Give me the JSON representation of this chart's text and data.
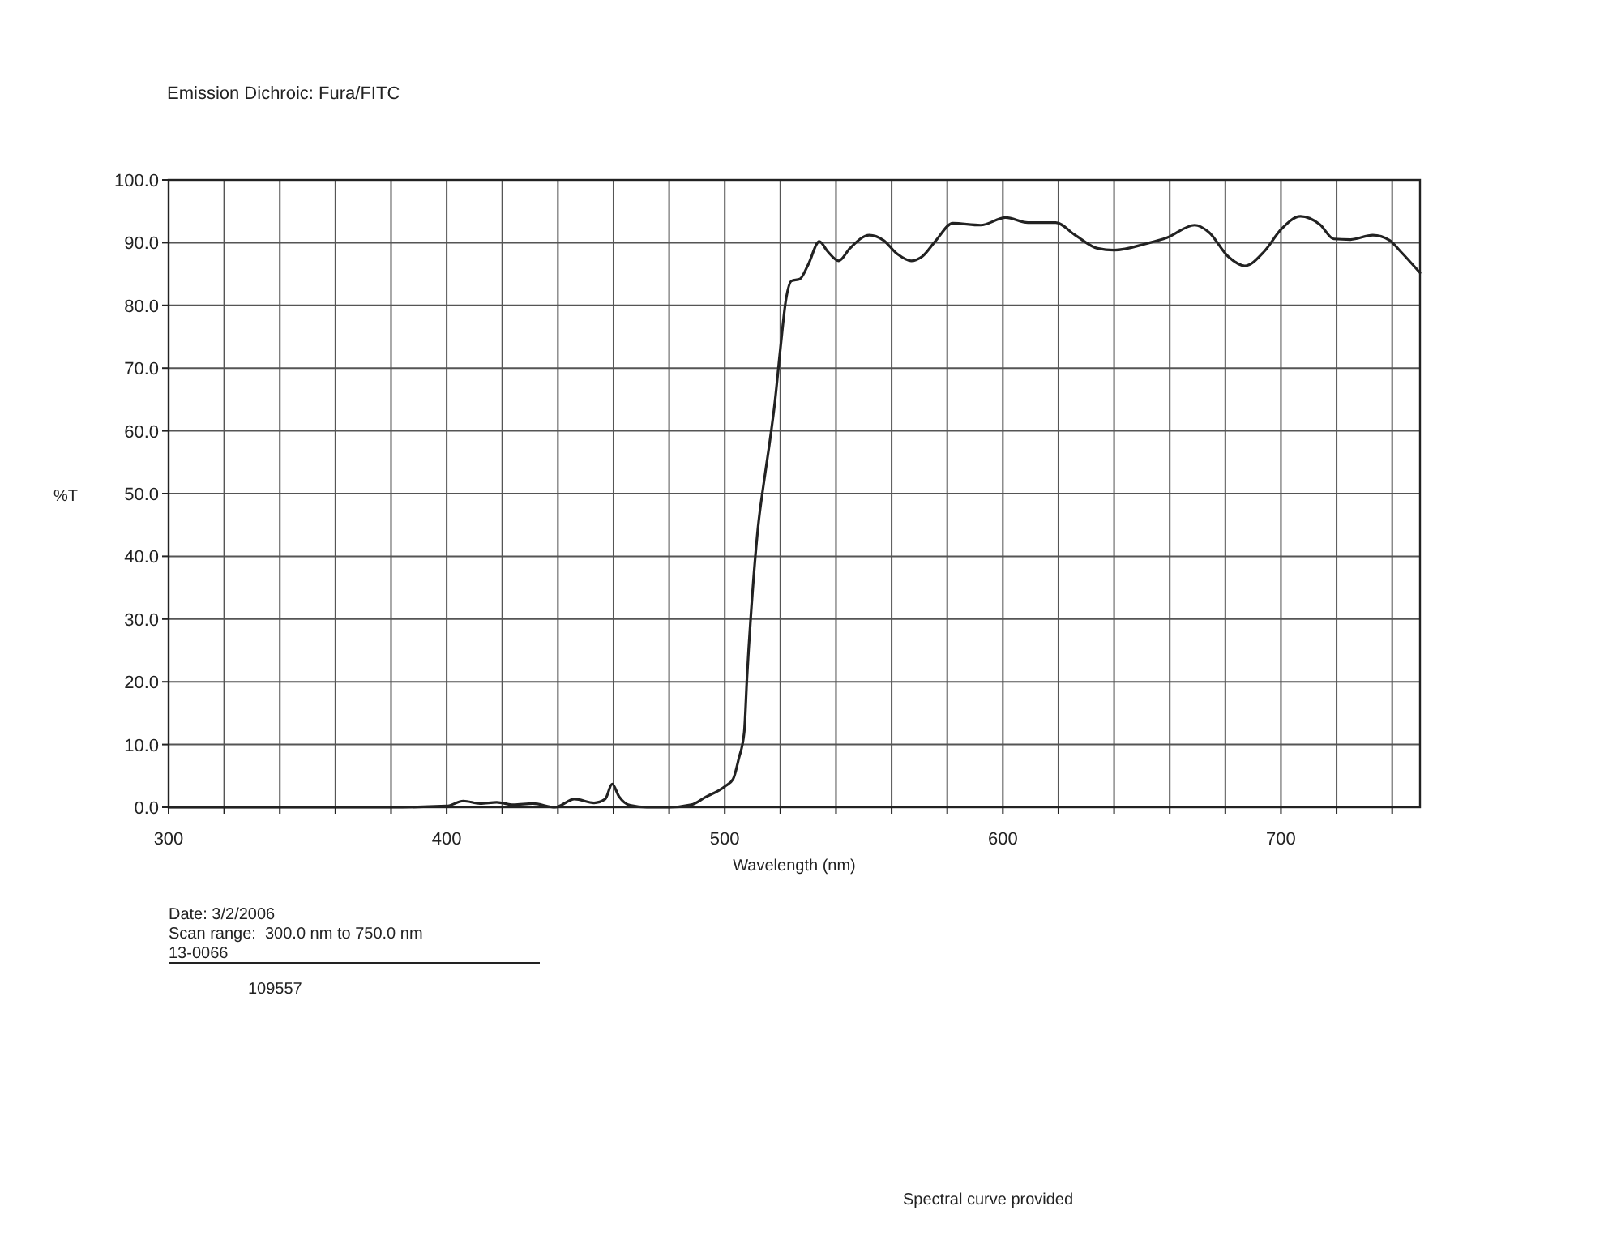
{
  "chart_data": {
    "type": "line",
    "title": "Emission Dichroic: Fura/FITC",
    "xlabel": "Wavelength (nm)",
    "ylabel": "%T",
    "annotations": [
      "Date: 3/2/2006",
      "Scan range:  300.0 nm to 750.0 nm",
      "13-0066",
      "109557",
      "Spectral curve provided"
    ],
    "xlim": [
      300,
      750
    ],
    "ylim": [
      0,
      100
    ],
    "xticks": [
      300,
      {
        "value": 320,
        "label": null
      },
      {
        "value": 340,
        "label": null
      },
      {
        "value": 360,
        "label": null
      },
      {
        "value": 380,
        "label": null
      },
      400,
      {
        "value": 420,
        "label": null
      },
      {
        "value": 440,
        "label": null
      },
      {
        "value": 460,
        "label": null
      },
      {
        "value": 480,
        "label": null
      },
      500,
      {
        "value": 520,
        "label": null
      },
      {
        "value": 540,
        "label": null
      },
      {
        "value": 560,
        "label": null
      },
      {
        "value": 580,
        "label": null
      },
      600,
      {
        "value": 620,
        "label": null
      },
      {
        "value": 640,
        "label": null
      },
      {
        "value": 660,
        "label": null
      },
      {
        "value": 680,
        "label": null
      },
      700,
      {
        "value": 720,
        "label": null
      },
      {
        "value": 740,
        "label": null
      }
    ],
    "yticks": [
      {
        "value": 0,
        "label": "0.0"
      },
      {
        "value": 10,
        "label": "10.0"
      },
      {
        "value": 20,
        "label": "20.0"
      },
      {
        "value": 30,
        "label": "30.0"
      },
      {
        "value": 40,
        "label": "40.0"
      },
      {
        "value": 50,
        "label": "50.0"
      },
      {
        "value": 60,
        "label": "60.0"
      },
      {
        "value": 70,
        "label": "70.0"
      },
      {
        "value": 80,
        "label": "80.0"
      },
      {
        "value": 90,
        "label": "90.0"
      },
      {
        "value": 100,
        "label": "100.0"
      }
    ],
    "grid": true,
    "line_style": "solid",
    "series": [
      {
        "color": "#222222",
        "x": [
          300,
          350,
          380,
          400,
          406,
          412,
          418,
          424,
          431,
          439,
          446,
          453,
          457,
          459.5,
          462,
          466,
          472,
          480,
          488,
          493,
          500,
          503,
          505,
          507,
          508,
          510,
          512,
          514,
          516,
          518,
          520,
          522,
          524,
          527,
          530,
          534,
          537,
          541,
          545,
          552,
          557,
          562,
          567,
          571,
          576,
          582,
          592,
          601,
          609,
          619,
          626,
          634,
          640,
          652,
          659,
          669,
          674,
          681,
          687,
          694,
          700,
          707,
          714,
          719,
          725,
          733,
          739,
          743,
          750
        ],
        "values": [
          0,
          0,
          0,
          0.2,
          1.0,
          0.6,
          0.8,
          0.4,
          0.6,
          0,
          1.3,
          0.7,
          1.3,
          3.7,
          1.7,
          0.3,
          0,
          0,
          0.4,
          1.6,
          3.3,
          4.5,
          7.7,
          12,
          20.7,
          34.4,
          44.8,
          51.6,
          57.7,
          64.5,
          73.1,
          80.9,
          83.9,
          84.2,
          86.5,
          90.2,
          88.6,
          87.1,
          89.1,
          91.2,
          90.4,
          88.2,
          87.1,
          87.8,
          90.4,
          93.1,
          92.8,
          94.0,
          93.2,
          93.2,
          91.2,
          89.1,
          88.8,
          89.9,
          90.8,
          92.8,
          91.7,
          87.8,
          86.3,
          88.6,
          92.1,
          94.2,
          92.9,
          90.6,
          90.5,
          91.2,
          90.4,
          88.6,
          85.2
        ]
      }
    ]
  }
}
